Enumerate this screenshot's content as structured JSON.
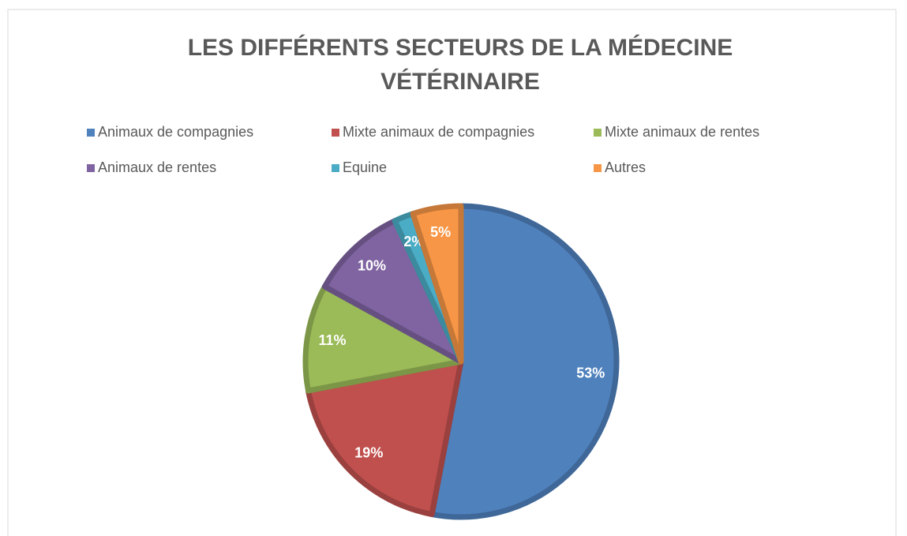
{
  "chart_data": {
    "type": "pie",
    "title": "LES DIFFÉRENTS SECTEURS DE LA MÉDECINE VÉTÉRINAIRE",
    "categories": [
      "Animaux de compagnies",
      "Mixte animaux de compagnies",
      "Mixte animaux de rentes",
      "Animaux de rentes",
      "Equine",
      "Autres"
    ],
    "values": [
      53,
      19,
      11,
      10,
      2,
      5
    ],
    "value_labels": [
      "53%",
      "19%",
      "11%",
      "10%",
      "2%",
      "5%"
    ],
    "colors": [
      "#4f81bd",
      "#c0504d",
      "#9bbb59",
      "#8064a2",
      "#4bacc6",
      "#f79646"
    ],
    "legend": "top"
  }
}
